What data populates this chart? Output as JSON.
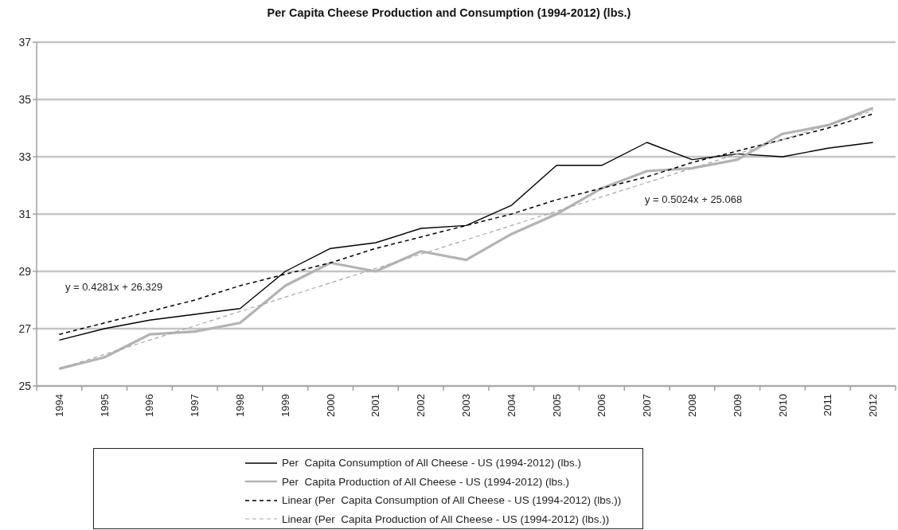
{
  "chart_data": {
    "type": "line",
    "title": "Per Capita Cheese Production and Consumption (1994-2012) (lbs.)",
    "categories": [
      "1994",
      "1995",
      "1996",
      "1997",
      "1998",
      "1999",
      "2000",
      "2001",
      "2002",
      "2003",
      "2004",
      "2005",
      "2006",
      "2007",
      "2008",
      "2009",
      "2010",
      "2011",
      "2012"
    ],
    "series": [
      {
        "name": "Per  Capita Consumption of All Cheese - US (1994-2012) (lbs.)",
        "color": "#000000",
        "values": [
          26.6,
          27.0,
          27.3,
          27.5,
          27.7,
          29.0,
          29.8,
          30.0,
          30.5,
          30.6,
          31.3,
          32.7,
          32.7,
          33.5,
          32.9,
          33.1,
          33.0,
          33.3,
          33.5
        ]
      },
      {
        "name": "Per  Capita Production of All Cheese - US (1994-2012) (lbs.)",
        "color": "#b3b3b3",
        "values": [
          25.6,
          26.0,
          26.8,
          26.9,
          27.2,
          28.5,
          29.3,
          29.0,
          29.7,
          29.4,
          30.3,
          31.0,
          31.9,
          32.5,
          32.6,
          32.9,
          33.8,
          34.1,
          34.7
        ]
      },
      {
        "name": "Linear (Per  Capita Consumption of All Cheese - US (1994-2012) (lbs.))",
        "color": "#000000",
        "line_style": "dashed",
        "values": [
          26.8,
          27.2,
          27.6,
          28.0,
          28.5,
          28.9,
          29.3,
          29.8,
          30.2,
          30.6,
          31.0,
          31.5,
          31.9,
          32.3,
          32.8,
          33.2,
          33.6,
          34.0,
          34.5
        ]
      },
      {
        "name": "Linear (Per  Capita Production of All Cheese - US (1994-2012) (lbs.))",
        "color": "#a6a6a6",
        "line_style": "dashed",
        "values": [
          25.6,
          26.1,
          26.6,
          27.1,
          27.6,
          28.1,
          28.6,
          29.1,
          29.6,
          30.1,
          30.6,
          31.1,
          31.6,
          32.1,
          32.6,
          33.1,
          33.6,
          34.1,
          34.6
        ]
      }
    ],
    "ylim": [
      25,
      37
    ],
    "yticks": [
      25,
      27,
      29,
      31,
      33,
      35,
      37
    ],
    "grid": "y",
    "legend": "bottom",
    "marker": "none",
    "line_style": "solid",
    "annotations": [
      "y = 0.4281x + 26.329",
      "y = 0.5024x + 25.068"
    ]
  }
}
